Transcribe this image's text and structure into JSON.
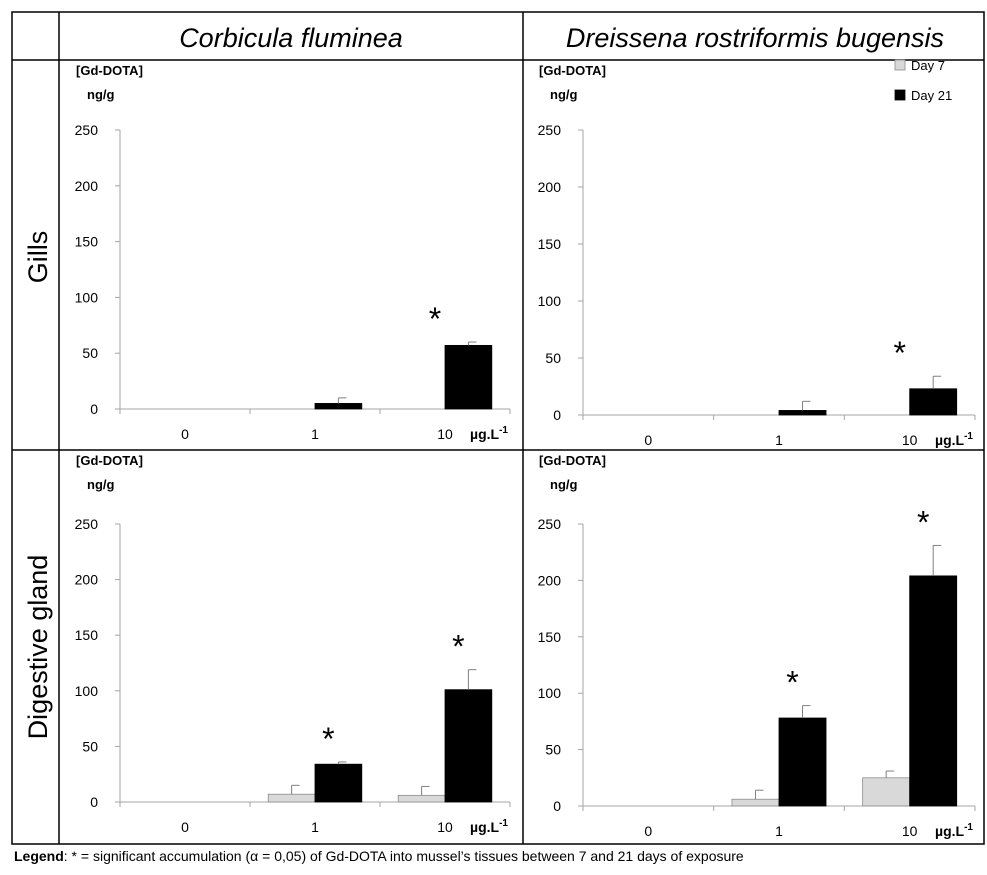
{
  "figure": {
    "columns": [
      "Corbicula fluminea",
      "Dreissena rostriformis bugensis"
    ],
    "rows": [
      "Gills",
      "Digestive gland"
    ],
    "legend_label": "Legend",
    "legend_text": ": * = significant accumulation (α = 0,05) of Gd-DOTA into mussel’s tissues between 7 and 21 days of exposure"
  },
  "colors": {
    "day7": "#d9d9d9",
    "day21": "#000000",
    "axis": "#a6a6a6",
    "border": "#000000"
  },
  "chart_data": [
    {
      "type": "bar",
      "species": "Corbicula fluminea",
      "tissue": "Gills",
      "categories": [
        "0",
        "1",
        "10"
      ],
      "series": [
        {
          "name": "Day 7",
          "values": [
            0,
            0,
            0
          ],
          "errors": [
            0,
            0,
            0
          ]
        },
        {
          "name": "Day 21",
          "values": [
            0,
            5,
            57
          ],
          "errors": [
            0,
            5,
            3
          ]
        }
      ],
      "significant": [
        false,
        false,
        true
      ],
      "ylabel": "[Gd-DOTA]",
      "yunit": "ng/g",
      "xunit": "µg.L",
      "xunit_sup": "-1",
      "ylim": [
        0,
        250
      ],
      "yticks": [
        0,
        50,
        100,
        150,
        200,
        250
      ],
      "legend": false
    },
    {
      "type": "bar",
      "species": "Dreissena rostriformis bugensis",
      "tissue": "Gills",
      "categories": [
        "0",
        "1",
        "10"
      ],
      "series": [
        {
          "name": "Day 7",
          "values": [
            0,
            0,
            0
          ],
          "errors": [
            0,
            0,
            0
          ]
        },
        {
          "name": "Day 21",
          "values": [
            0,
            4,
            23
          ],
          "errors": [
            0,
            8,
            11
          ]
        }
      ],
      "significant": [
        false,
        false,
        true
      ],
      "ylabel": "[Gd-DOTA]",
      "yunit": "ng/g",
      "xunit": "µg.L",
      "xunit_sup": "-1",
      "ylim": [
        0,
        250
      ],
      "yticks": [
        0,
        50,
        100,
        150,
        200,
        250
      ],
      "legend": true,
      "legend_position": "top-right"
    },
    {
      "type": "bar",
      "species": "Corbicula fluminea",
      "tissue": "Digestive gland",
      "categories": [
        "0",
        "1",
        "10"
      ],
      "series": [
        {
          "name": "Day 7",
          "values": [
            0,
            7,
            6
          ],
          "errors": [
            0,
            8,
            8
          ]
        },
        {
          "name": "Day 21",
          "values": [
            0,
            34,
            101
          ],
          "errors": [
            0,
            2,
            18
          ]
        }
      ],
      "significant": [
        false,
        true,
        true
      ],
      "ylabel": "[Gd-DOTA]",
      "yunit": "ng/g",
      "xunit": "µg.L",
      "xunit_sup": "-1",
      "ylim": [
        0,
        250
      ],
      "yticks": [
        0,
        50,
        100,
        150,
        200,
        250
      ],
      "legend": false
    },
    {
      "type": "bar",
      "species": "Dreissena rostriformis bugensis",
      "tissue": "Digestive gland",
      "categories": [
        "0",
        "1",
        "10"
      ],
      "series": [
        {
          "name": "Day 7",
          "values": [
            0,
            6,
            25
          ],
          "errors": [
            0,
            8,
            6
          ]
        },
        {
          "name": "Day 21",
          "values": [
            0,
            78,
            204
          ],
          "errors": [
            0,
            11,
            27
          ]
        }
      ],
      "significant": [
        false,
        true,
        true
      ],
      "ylabel": "[Gd-DOTA]",
      "yunit": "ng/g",
      "xunit": "µg.L",
      "xunit_sup": "-1",
      "ylim": [
        0,
        250
      ],
      "yticks": [
        0,
        50,
        100,
        150,
        200,
        250
      ],
      "legend": false
    }
  ]
}
